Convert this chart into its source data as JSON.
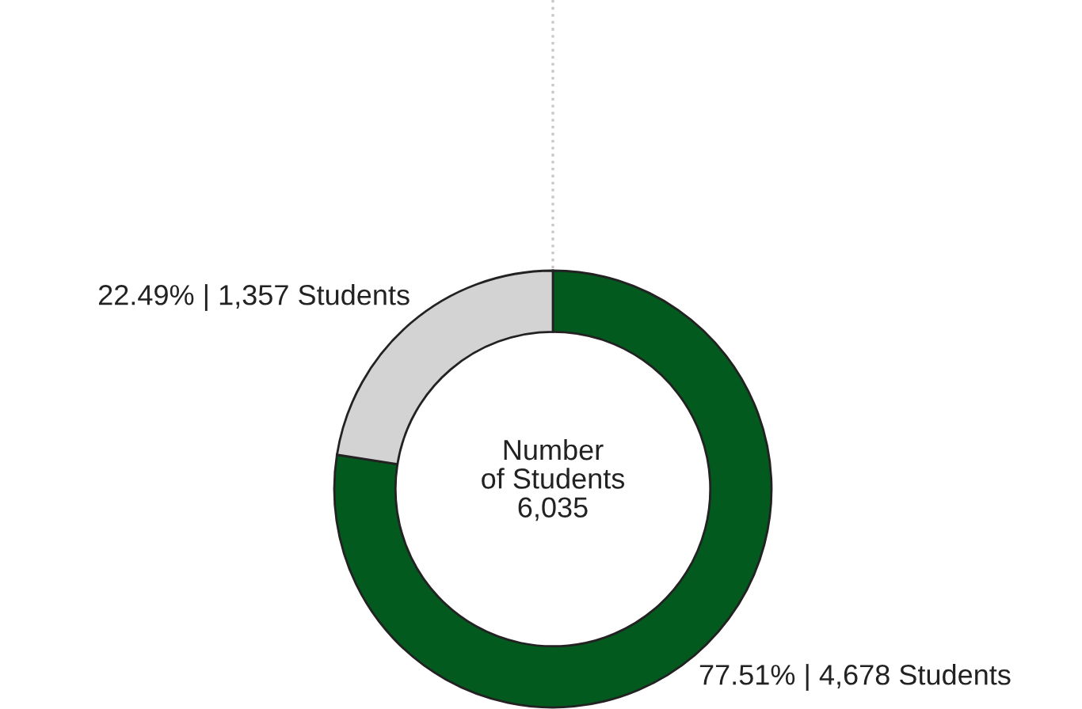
{
  "chart_data": {
    "type": "donut",
    "categories": [
      null,
      null
    ],
    "values": [
      4678,
      1357
    ],
    "colors": [
      "#035a1e",
      "#d3d3d3"
    ],
    "value_labels": [
      "77.51% | 4,678 Students",
      "22.49% | 1,357 Students"
    ],
    "annotations": [
      "Number\nof Students\n6,035"
    ],
    "legend": false
  }
}
